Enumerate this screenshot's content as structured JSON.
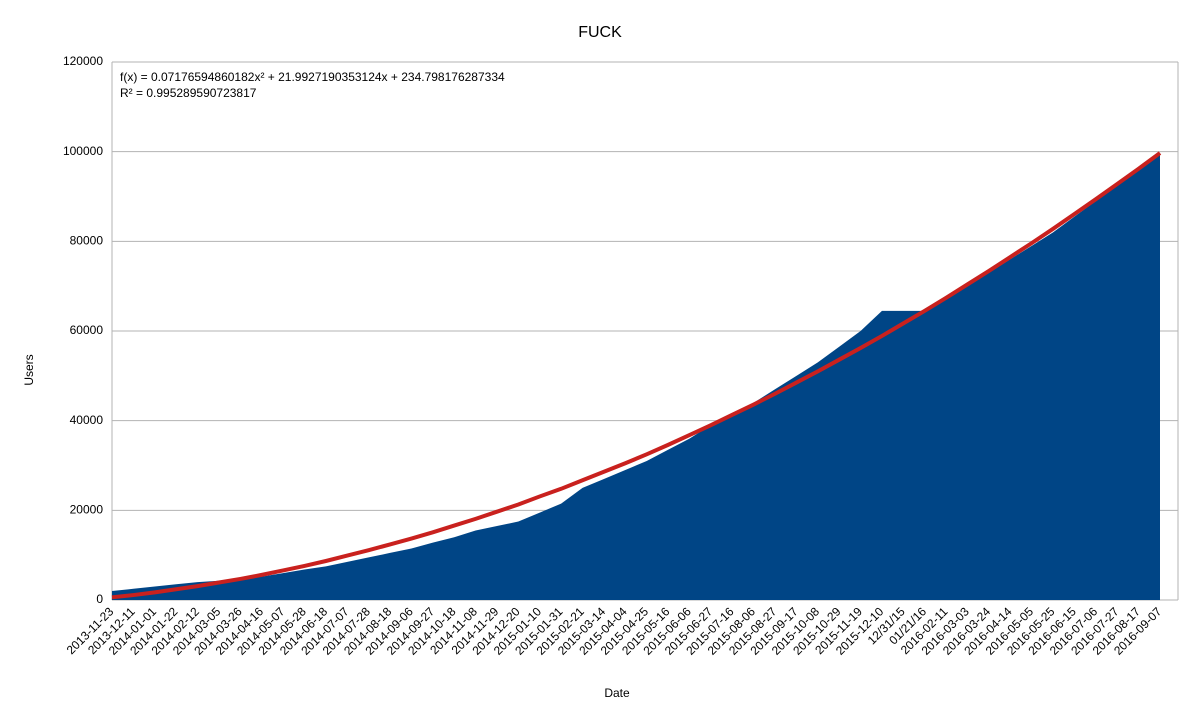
{
  "chart_data": {
    "type": "area",
    "title": "FUCK",
    "x_label": "Date",
    "y_label": "Users",
    "annotations": [
      "f(x) = 0.07176594860182x² + 21.9927190353124x + 234.798176287334",
      "R² = 0.995289590723817"
    ],
    "categories": [
      "2013-11-23",
      "2013-12-11",
      "2014-01-01",
      "2014-01-22",
      "2014-02-12",
      "2014-03-05",
      "2014-03-26",
      "2014-04-16",
      "2014-05-07",
      "2014-05-28",
      "2014-06-18",
      "2014-07-07",
      "2014-07-28",
      "2014-08-18",
      "2014-09-06",
      "2014-09-27",
      "2014-10-18",
      "2014-11-08",
      "2014-11-29",
      "2014-12-20",
      "2015-01-10",
      "2015-01-31",
      "2015-02-21",
      "2015-03-14",
      "2015-04-04",
      "2015-04-25",
      "2015-05-16",
      "2015-06-06",
      "2015-06-27",
      "2015-07-16",
      "2015-08-06",
      "2015-08-27",
      "2015-09-17",
      "2015-10-08",
      "2015-10-29",
      "2015-11-19",
      "2015-12-10",
      "12/31/15",
      "01/21/16",
      "2016-02-11",
      "2016-03-03",
      "2016-03-24",
      "2016-04-14",
      "2016-05-05",
      "2016-05-25",
      "2016-06-15",
      "2016-07-06",
      "2016-07-27",
      "2016-08-17",
      "2016-09-07"
    ],
    "series": [
      {
        "kind": "area",
        "color": "#004586",
        "values": [
          2000,
          2500,
          3000,
          3500,
          4000,
          4300,
          4700,
          5200,
          6000,
          6800,
          7500,
          8500,
          9500,
          10500,
          11500,
          12800,
          14000,
          15500,
          16500,
          17500,
          19500,
          21500,
          25000,
          27000,
          29000,
          31000,
          33500,
          36000,
          39000,
          41500,
          44000,
          47000,
          50000,
          53000,
          56500,
          60000,
          64500,
          64500,
          64500,
          67000,
          70000,
          73000,
          76000,
          79000,
          82000,
          85500,
          89000,
          92500,
          96000,
          99500
        ]
      },
      {
        "kind": "line",
        "color": "#c9211e",
        "values": [
          600,
          1100,
          1700,
          2400,
          3100,
          3900,
          4700,
          5600,
          6600,
          7600,
          8700,
          9900,
          11100,
          12400,
          13700,
          15100,
          16600,
          18100,
          19700,
          21300,
          23100,
          24800,
          26700,
          28600,
          30500,
          32500,
          34600,
          36800,
          39000,
          41300,
          43600,
          46000,
          48500,
          51000,
          53600,
          56200,
          58900,
          61700,
          64500,
          67400,
          70400,
          73400,
          76500,
          79600,
          82800,
          86100,
          89400,
          92800,
          96200,
          99700
        ]
      }
    ],
    "ylim": [
      0,
      120000
    ],
    "yticks": [
      0,
      20000,
      40000,
      60000,
      80000,
      100000,
      120000
    ],
    "grid": true
  }
}
